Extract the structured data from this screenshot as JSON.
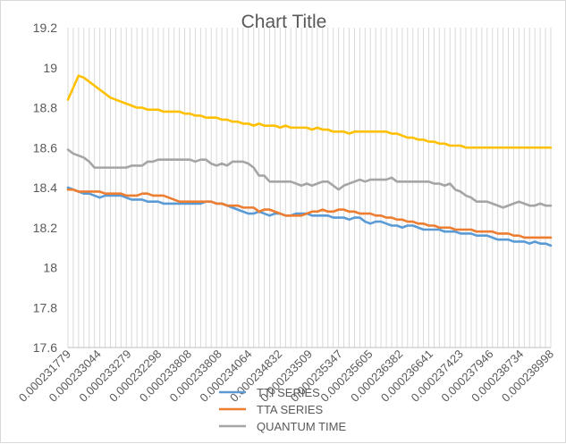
{
  "chart_data": {
    "type": "line",
    "title": "Chart Title",
    "xlabel": "",
    "ylabel": "",
    "ylim": [
      17.6,
      19.2
    ],
    "y_ticks": [
      "17.6",
      "17.8",
      "18",
      "18.2",
      "18.4",
      "18.6",
      "18.8",
      "19",
      "19.2"
    ],
    "x_tick_labels": [
      "0.000231779",
      "0.000233044",
      "0.000233279",
      "0.000232298",
      "0.000233808",
      "0.000233808",
      "0.000234064",
      "0.000234832",
      "0.000233509",
      "0.000235347",
      "0.000235605",
      "0.000236382",
      "0.000236641",
      "0.000237423",
      "0.000237946",
      "0.000238734",
      "0.000238998"
    ],
    "grid": "vertical",
    "legend_position": "bottom",
    "series": [
      {
        "name": "TTI SERIES",
        "color": "#5b9bd5",
        "values": [
          18.4,
          18.39,
          18.38,
          18.37,
          18.37,
          18.36,
          18.35,
          18.36,
          18.36,
          18.36,
          18.36,
          18.35,
          18.34,
          18.34,
          18.34,
          18.33,
          18.33,
          18.33,
          18.32,
          18.32,
          18.32,
          18.32,
          18.32,
          18.32,
          18.32,
          18.32,
          18.33,
          18.33,
          18.32,
          18.32,
          18.31,
          18.3,
          18.29,
          18.28,
          18.27,
          18.27,
          18.28,
          18.27,
          18.26,
          18.27,
          18.27,
          18.26,
          18.26,
          18.27,
          18.27,
          18.27,
          18.26,
          18.26,
          18.26,
          18.26,
          18.25,
          18.25,
          18.25,
          18.24,
          18.25,
          18.25,
          18.23,
          18.22,
          18.23,
          18.23,
          18.22,
          18.21,
          18.21,
          18.2,
          18.21,
          18.21,
          18.2,
          18.19,
          18.19,
          18.19,
          18.19,
          18.18,
          18.18,
          18.18,
          18.17,
          18.17,
          18.17,
          18.16,
          18.16,
          18.16,
          18.15,
          18.14,
          18.14,
          18.14,
          18.13,
          18.13,
          18.13,
          18.12,
          18.13,
          18.12,
          18.12,
          18.11
        ]
      },
      {
        "name": "TTA SERIES",
        "color": "#ed7d31",
        "values": [
          18.39,
          18.39,
          18.38,
          18.38,
          18.38,
          18.38,
          18.38,
          18.37,
          18.37,
          18.37,
          18.37,
          18.36,
          18.36,
          18.36,
          18.37,
          18.37,
          18.36,
          18.36,
          18.36,
          18.35,
          18.34,
          18.33,
          18.33,
          18.33,
          18.33,
          18.33,
          18.33,
          18.33,
          18.32,
          18.32,
          18.31,
          18.31,
          18.31,
          18.3,
          18.3,
          18.3,
          18.28,
          18.29,
          18.29,
          18.28,
          18.27,
          18.26,
          18.26,
          18.26,
          18.26,
          18.27,
          18.28,
          18.28,
          18.29,
          18.28,
          18.28,
          18.29,
          18.29,
          18.28,
          18.28,
          18.27,
          18.27,
          18.27,
          18.26,
          18.26,
          18.25,
          18.25,
          18.24,
          18.24,
          18.23,
          18.23,
          18.22,
          18.22,
          18.21,
          18.21,
          18.2,
          18.2,
          18.2,
          18.19,
          18.19,
          18.19,
          18.19,
          18.18,
          18.18,
          18.18,
          18.18,
          18.17,
          18.17,
          18.17,
          18.16,
          18.16,
          18.15,
          18.15,
          18.15,
          18.15,
          18.15,
          18.15
        ]
      },
      {
        "name": "QUANTUM TIME",
        "color": "#a5a5a5",
        "values": [
          18.59,
          18.57,
          18.56,
          18.55,
          18.53,
          18.5,
          18.5,
          18.5,
          18.5,
          18.5,
          18.5,
          18.5,
          18.51,
          18.51,
          18.51,
          18.53,
          18.53,
          18.54,
          18.54,
          18.54,
          18.54,
          18.54,
          18.54,
          18.54,
          18.53,
          18.54,
          18.54,
          18.52,
          18.51,
          18.52,
          18.51,
          18.53,
          18.53,
          18.53,
          18.52,
          18.5,
          18.46,
          18.46,
          18.43,
          18.43,
          18.43,
          18.43,
          18.43,
          18.42,
          18.41,
          18.42,
          18.41,
          18.42,
          18.43,
          18.43,
          18.41,
          18.39,
          18.41,
          18.42,
          18.43,
          18.44,
          18.43,
          18.44,
          18.44,
          18.44,
          18.44,
          18.45,
          18.43,
          18.43,
          18.43,
          18.43,
          18.43,
          18.43,
          18.43,
          18.42,
          18.42,
          18.41,
          18.42,
          18.39,
          18.38,
          18.36,
          18.35,
          18.33,
          18.33,
          18.33,
          18.32,
          18.31,
          18.3,
          18.31,
          18.32,
          18.33,
          18.32,
          18.31,
          18.31,
          18.32,
          18.31,
          18.31
        ]
      },
      {
        "name": "",
        "color": "#ffc000",
        "values": [
          18.84,
          18.9,
          18.96,
          18.95,
          18.93,
          18.91,
          18.89,
          18.87,
          18.85,
          18.84,
          18.83,
          18.82,
          18.81,
          18.8,
          18.8,
          18.79,
          18.79,
          18.79,
          18.78,
          18.78,
          18.78,
          18.78,
          18.77,
          18.77,
          18.76,
          18.76,
          18.75,
          18.75,
          18.75,
          18.74,
          18.74,
          18.73,
          18.73,
          18.72,
          18.72,
          18.71,
          18.72,
          18.71,
          18.71,
          18.71,
          18.7,
          18.71,
          18.7,
          18.7,
          18.7,
          18.7,
          18.69,
          18.7,
          18.69,
          18.69,
          18.68,
          18.68,
          18.68,
          18.67,
          18.68,
          18.68,
          18.68,
          18.68,
          18.68,
          18.68,
          18.68,
          18.67,
          18.67,
          18.66,
          18.65,
          18.65,
          18.64,
          18.64,
          18.63,
          18.63,
          18.62,
          18.62,
          18.61,
          18.61,
          18.61,
          18.6,
          18.6,
          18.6,
          18.6,
          18.6,
          18.6,
          18.6,
          18.6,
          18.6,
          18.6,
          18.6,
          18.6,
          18.6,
          18.6,
          18.6,
          18.6,
          18.6
        ]
      }
    ]
  }
}
